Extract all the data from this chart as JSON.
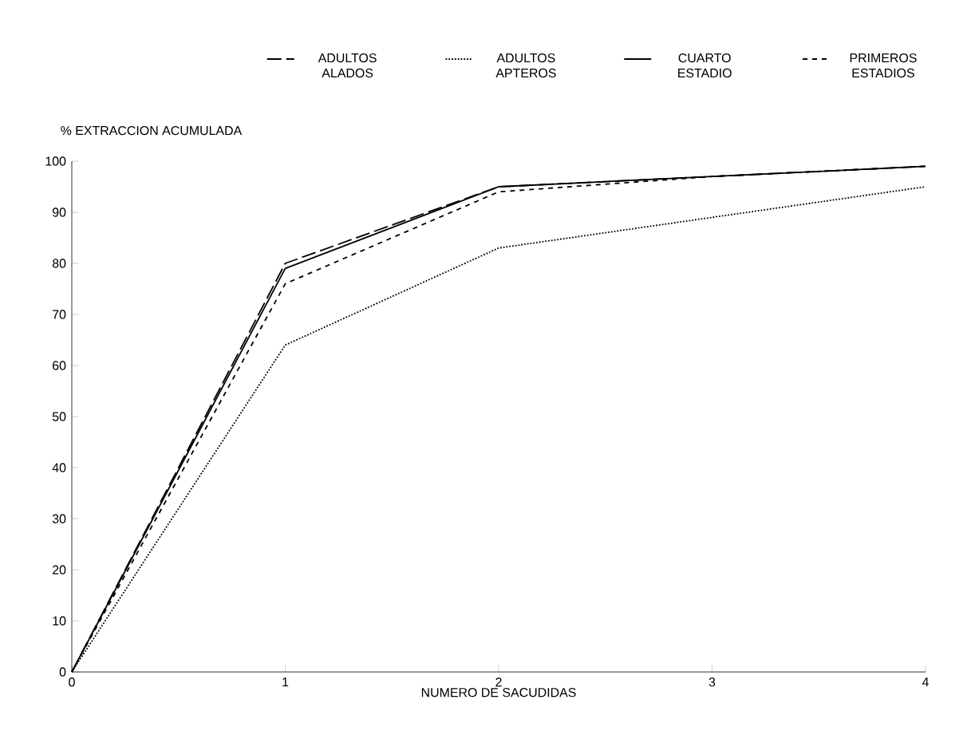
{
  "chart_data": {
    "type": "line",
    "xlabel": "NUMERO DE SACUDIDAS",
    "ylabel": "% EXTRACCION ACUMULADA",
    "x": [
      0,
      1,
      2,
      3,
      4
    ],
    "xlim": [
      0,
      4
    ],
    "xticks": [
      0,
      1,
      2,
      3,
      4
    ],
    "ylim": [
      0,
      100
    ],
    "yticks": [
      0,
      10,
      20,
      30,
      40,
      50,
      60,
      70,
      80,
      90,
      100
    ],
    "grid": false,
    "legend": "top",
    "marker": "none",
    "series": [
      {
        "name": "ADULTOS ALADOS",
        "color": "#000000",
        "line_style": "dashed",
        "values": [
          0,
          80,
          95,
          97,
          99
        ]
      },
      {
        "name": "ADULTOS APTEROS",
        "color": "#000000",
        "line_style": "dotted",
        "values": [
          0,
          64,
          83,
          89,
          95
        ]
      },
      {
        "name": "CUARTO ESTADIO",
        "color": "#000000",
        "line_style": "solid",
        "values": [
          0,
          79,
          95,
          97,
          99
        ]
      },
      {
        "name": "PRIMEROS ESTADIOS",
        "color": "#000000",
        "line_style": "dashed",
        "values": [
          0,
          76,
          94,
          97,
          99
        ]
      }
    ]
  }
}
